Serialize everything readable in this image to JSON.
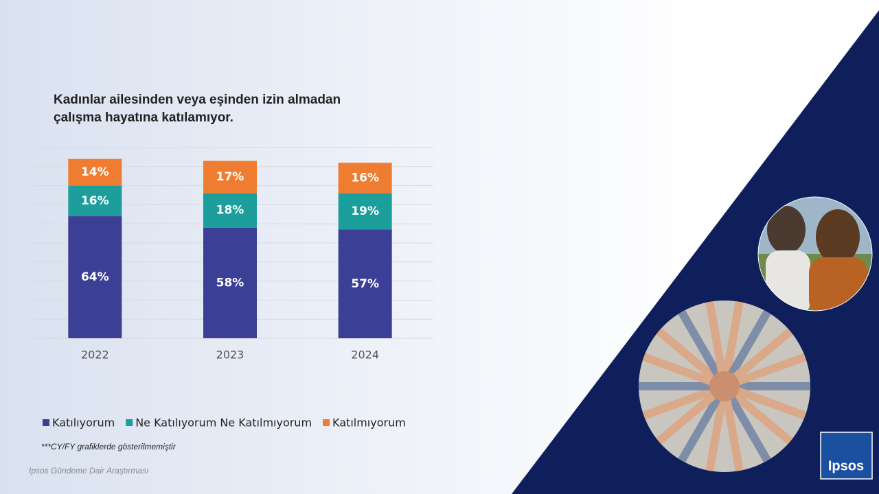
{
  "chart_data": {
    "type": "stacked-bar",
    "title": "Kadınlar ailesinden  veya eşinden izin almadan çalışma hayatına katılamıyor.",
    "categories": [
      "2022",
      "2023",
      "2024"
    ],
    "series": [
      {
        "name": "Katılıyorum",
        "color": "#3b3f96",
        "values": [
          64,
          58,
          57
        ],
        "value_labels": [
          "64%",
          "58%",
          "57%"
        ]
      },
      {
        "name": "Ne Katılıyorum Ne Katılmıyorum",
        "color": "#1c9e9c",
        "values": [
          16,
          18,
          19
        ],
        "value_labels": [
          "16%",
          "18%",
          "19%"
        ]
      },
      {
        "name": "Katılmıyorum",
        "color": "#ee7d31",
        "values": [
          14,
          17,
          16
        ],
        "value_labels": [
          "14%",
          "17%",
          "16%"
        ]
      }
    ],
    "ylim": [
      0,
      100
    ],
    "yticks": [
      0,
      10,
      20,
      30,
      40,
      50,
      60,
      70,
      80,
      90,
      100
    ],
    "grid": true
  },
  "footnote": "***CY/FY grafiklerde gösterilmemiştir",
  "source": "Ipsos Gündeme Dair Araştırması",
  "logo": "Ipsos"
}
